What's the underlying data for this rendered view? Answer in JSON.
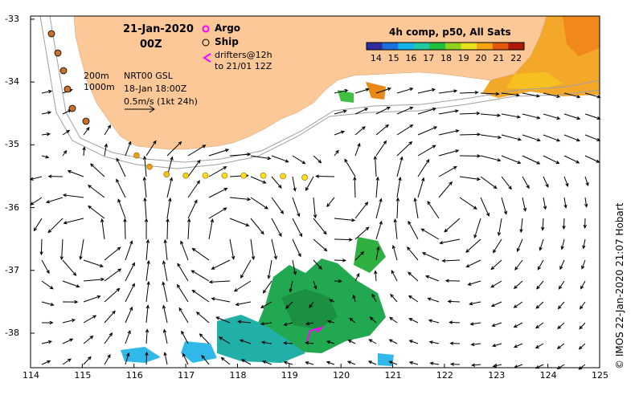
{
  "header": {
    "date": "21-Jan-2020",
    "time": "00Z"
  },
  "legend": {
    "argo": "Argo",
    "ship": "Ship",
    "drifters_line1": "drifters@12h",
    "drifters_line2": "to 21/01 12Z",
    "argo_color": "#ff00ff",
    "drifter_color": "#ff00ff"
  },
  "info": {
    "depth1": "200m",
    "depth2": "1000m",
    "product": "NRT00 GSL",
    "product_time": "18-Jan 18:00Z",
    "scale": "0.5m/s (1kt 24h)"
  },
  "colorbar": {
    "title": "4h comp, p50, All Sats",
    "ticks": [
      "14",
      "15",
      "16",
      "17",
      "18",
      "19",
      "20",
      "21",
      "22"
    ],
    "colors": [
      "#2e2e9e",
      "#1d6fe0",
      "#10b4e8",
      "#22c9a0",
      "#1fbf3a",
      "#8fd320",
      "#e8e01a",
      "#f5a214",
      "#e2580c",
      "#b21a08"
    ]
  },
  "axes": {
    "x_ticks": [
      "114",
      "115",
      "116",
      "117",
      "118",
      "119",
      "120",
      "121",
      "122",
      "123",
      "124",
      "125"
    ],
    "y_ticks": [
      "-33",
      "-34",
      "-35",
      "-36",
      "-37",
      "-38"
    ],
    "x_range": [
      114,
      125
    ],
    "y_range": [
      -38.55,
      -32.95
    ]
  },
  "colors": {
    "land": "#fcc898",
    "shelf_line": "#a0a0a0",
    "warm_sst": "#f0b020",
    "cool_sst": "#20a040",
    "cold_sst": "#30b0e0"
  },
  "ship_track_color": "#ffff00",
  "copyright": "© IMOS 22-Jan-2020 21:07 Hobart"
}
